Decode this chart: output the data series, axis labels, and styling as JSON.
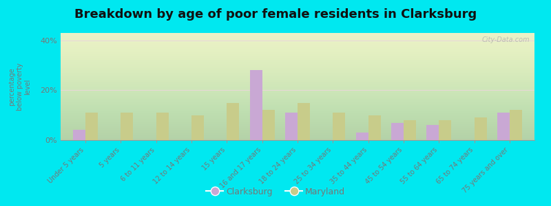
{
  "title": "Breakdown by age of poor female residents in Clarksburg",
  "ylabel": "percentage\nbelow poverty\nlevel",
  "categories": [
    "Under 5 years",
    "5 years",
    "6 to 11 years",
    "12 to 14 years",
    "15 years",
    "16 and 17 years",
    "18 to 24 years",
    "25 to 34 years",
    "35 to 44 years",
    "45 to 54 years",
    "55 to 64 years",
    "65 to 74 years",
    "75 years and over"
  ],
  "clarksburg": [
    4,
    0,
    0,
    0,
    0,
    28,
    11,
    0,
    3,
    7,
    6,
    0,
    11
  ],
  "maryland": [
    11,
    11,
    11,
    10,
    15,
    12,
    15,
    11,
    10,
    8,
    8,
    9,
    12
  ],
  "clarksburg_color": "#c9a8d4",
  "maryland_color": "#c8cc8a",
  "background_top": "#f5faee",
  "background_bottom": "#e8f0cc",
  "outer_bg": "#00e8f0",
  "ylim": [
    0,
    43
  ],
  "yticks": [
    0,
    20,
    40
  ],
  "ytick_labels": [
    "0%",
    "20%",
    "40%"
  ],
  "title_fontsize": 13,
  "bar_width": 0.35,
  "legend_clarksburg": "Clarksburg",
  "legend_maryland": "Maryland",
  "watermark": "City-Data.com",
  "grid_color": "#e8d8d8",
  "axis_color": "#999999",
  "text_color": "#777777"
}
